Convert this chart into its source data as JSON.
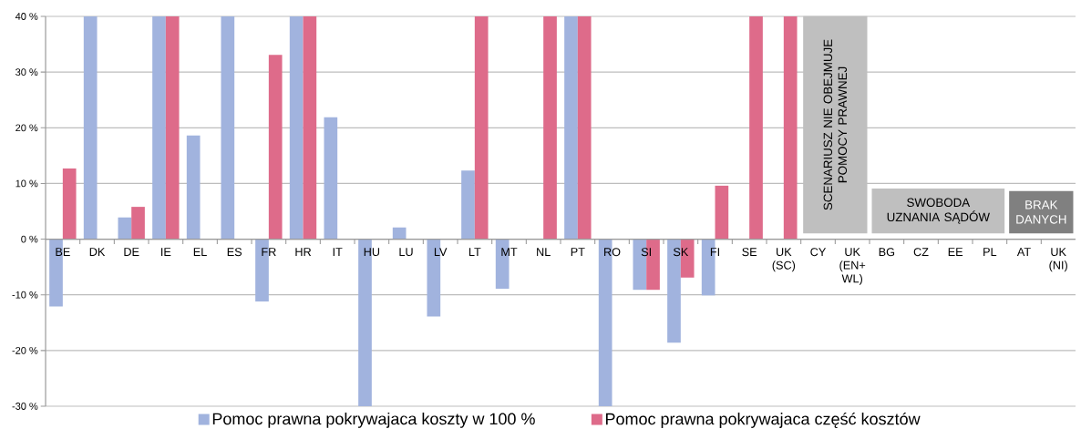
{
  "chart_data": {
    "type": "bar",
    "categories": [
      "BE",
      "DK",
      "DE",
      "IE",
      "EL",
      "ES",
      "FR",
      "HR",
      "IT",
      "HU",
      "LU",
      "LV",
      "LT",
      "MT",
      "NL",
      "PT",
      "RO",
      "SI",
      "SK",
      "FI",
      "SE",
      "UK (SC)",
      "CY",
      "UK (EN+WL)",
      "BG",
      "CZ",
      "EE",
      "PL",
      "AT",
      "UK (NI)"
    ],
    "series": [
      {
        "name": "Pomoc prawna pokrywajaca koszty w 100 %",
        "color": "#a1b3de",
        "values": [
          -12.1,
          40,
          3.9,
          40,
          18.6,
          40,
          -11.2,
          40,
          21.9,
          -30,
          2.1,
          -13.9,
          12.3,
          -8.9,
          null,
          40,
          -30,
          -9.1,
          -18.6,
          -10.1,
          null,
          null,
          null,
          null,
          null,
          null,
          null,
          null,
          null,
          null
        ]
      },
      {
        "name": "Pomoc prawna pokrywajaca część kosztów",
        "color": "#de6b8a",
        "values": [
          12.7,
          null,
          5.8,
          40,
          null,
          null,
          33.1,
          40,
          null,
          null,
          null,
          null,
          40,
          null,
          40,
          40,
          null,
          -9.1,
          -6.9,
          9.6,
          40,
          40,
          null,
          null,
          null,
          null,
          null,
          null,
          null,
          null
        ]
      }
    ],
    "ylim": [
      -30,
      40
    ],
    "yticks": [
      {
        "value": -30,
        "label": "-30 %"
      },
      {
        "value": -20,
        "label": "-20 %"
      },
      {
        "value": -10,
        "label": "-10 %"
      },
      {
        "value": 0,
        "label": "0 %"
      },
      {
        "value": 10,
        "label": "10 %"
      },
      {
        "value": 20,
        "label": "20 %"
      },
      {
        "value": 30,
        "label": "30 %"
      },
      {
        "value": 40,
        "label": "40 %"
      }
    ],
    "bands": [
      {
        "axis": "x",
        "from": "CY",
        "to": "UK (EN+WL)",
        "label": "SCENARIUSZ NIE OBEJMUJE POMOCY PRAWNEJ",
        "color": "#bfbfbf"
      },
      {
        "axis": "x",
        "from": "BG",
        "to": "PL",
        "label": "SWOBODA UZNANIA SĄDÓW",
        "color": "#bfbfbf"
      },
      {
        "axis": "x",
        "from": "AT",
        "to": "UK (NI)",
        "label": "BRAK DANYCH",
        "color": "#808080"
      }
    ],
    "grid": "y",
    "legend": "bottom"
  }
}
